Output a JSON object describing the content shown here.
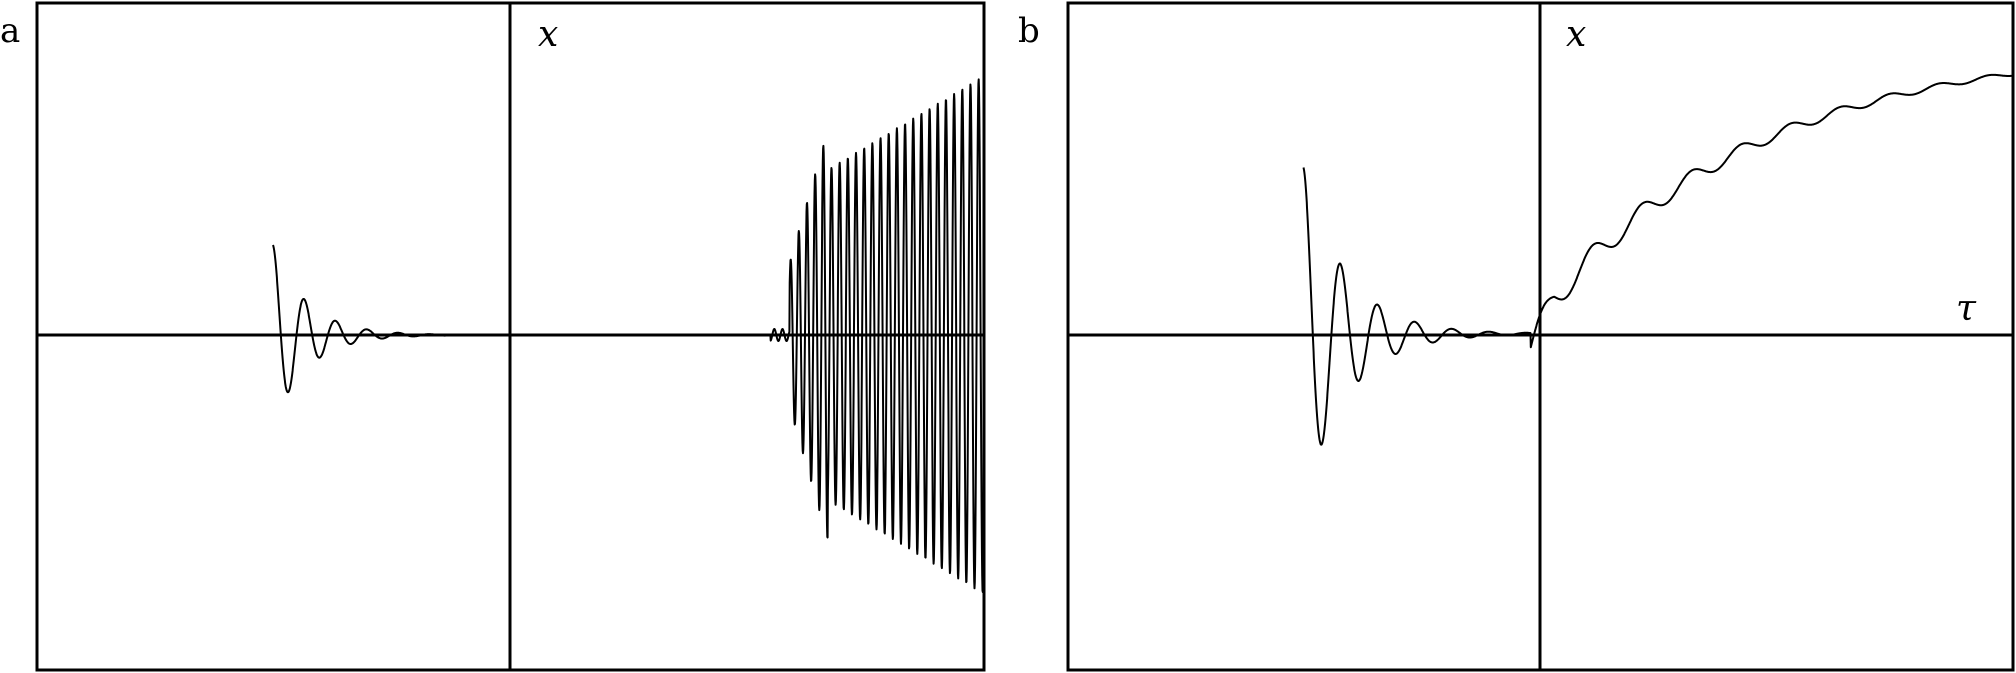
{
  "chart_data": [
    {
      "panel": "a",
      "type": "line",
      "xlabel": "",
      "ylabel": "x",
      "grid": false,
      "x": [
        -0.5,
        -0.45,
        -0.4,
        -0.35,
        -0.3,
        -0.2,
        -0.1,
        0,
        0.2,
        0.4,
        0.5,
        0.6,
        0.65,
        0.7,
        0.72,
        0.75,
        0.78,
        0.8,
        0.82,
        0.85,
        0.88,
        0.9,
        0.95,
        1.0
      ],
      "y": [
        0.3,
        -0.08,
        0.02,
        0.0,
        0.0,
        0.0,
        0.0,
        0.0,
        0.0,
        0.0,
        0.01,
        -0.02,
        0.18,
        -0.33,
        0.67,
        -0.57,
        0.68,
        -0.68,
        0.7,
        -0.7,
        0.74,
        -0.76,
        0.8,
        0.86
      ],
      "samples": [
        {
          "t": -0.5,
          "env": 0.3
        },
        {
          "t": 1.0,
          "env": 0.86
        }
      ]
    },
    {
      "panel": "b",
      "type": "line",
      "xlabel": "τ",
      "ylabel": "x",
      "grid": false,
      "x": [
        -0.5,
        -0.48,
        -0.45,
        -0.42,
        -0.4,
        -0.35,
        -0.3,
        -0.2,
        -0.1,
        0.0,
        0.05,
        0.1,
        0.15,
        0.2,
        0.25,
        0.3,
        0.4,
        0.5,
        0.6,
        0.7,
        0.8,
        0.9,
        1.0
      ],
      "y": [
        0.5,
        -0.22,
        0.1,
        -0.04,
        0.02,
        0.0,
        0.0,
        0.01,
        0.02,
        0.07,
        0.26,
        0.27,
        0.35,
        0.41,
        0.45,
        0.5,
        0.58,
        0.64,
        0.7,
        0.75,
        0.8,
        0.84,
        0.85
      ]
    }
  ]
}
